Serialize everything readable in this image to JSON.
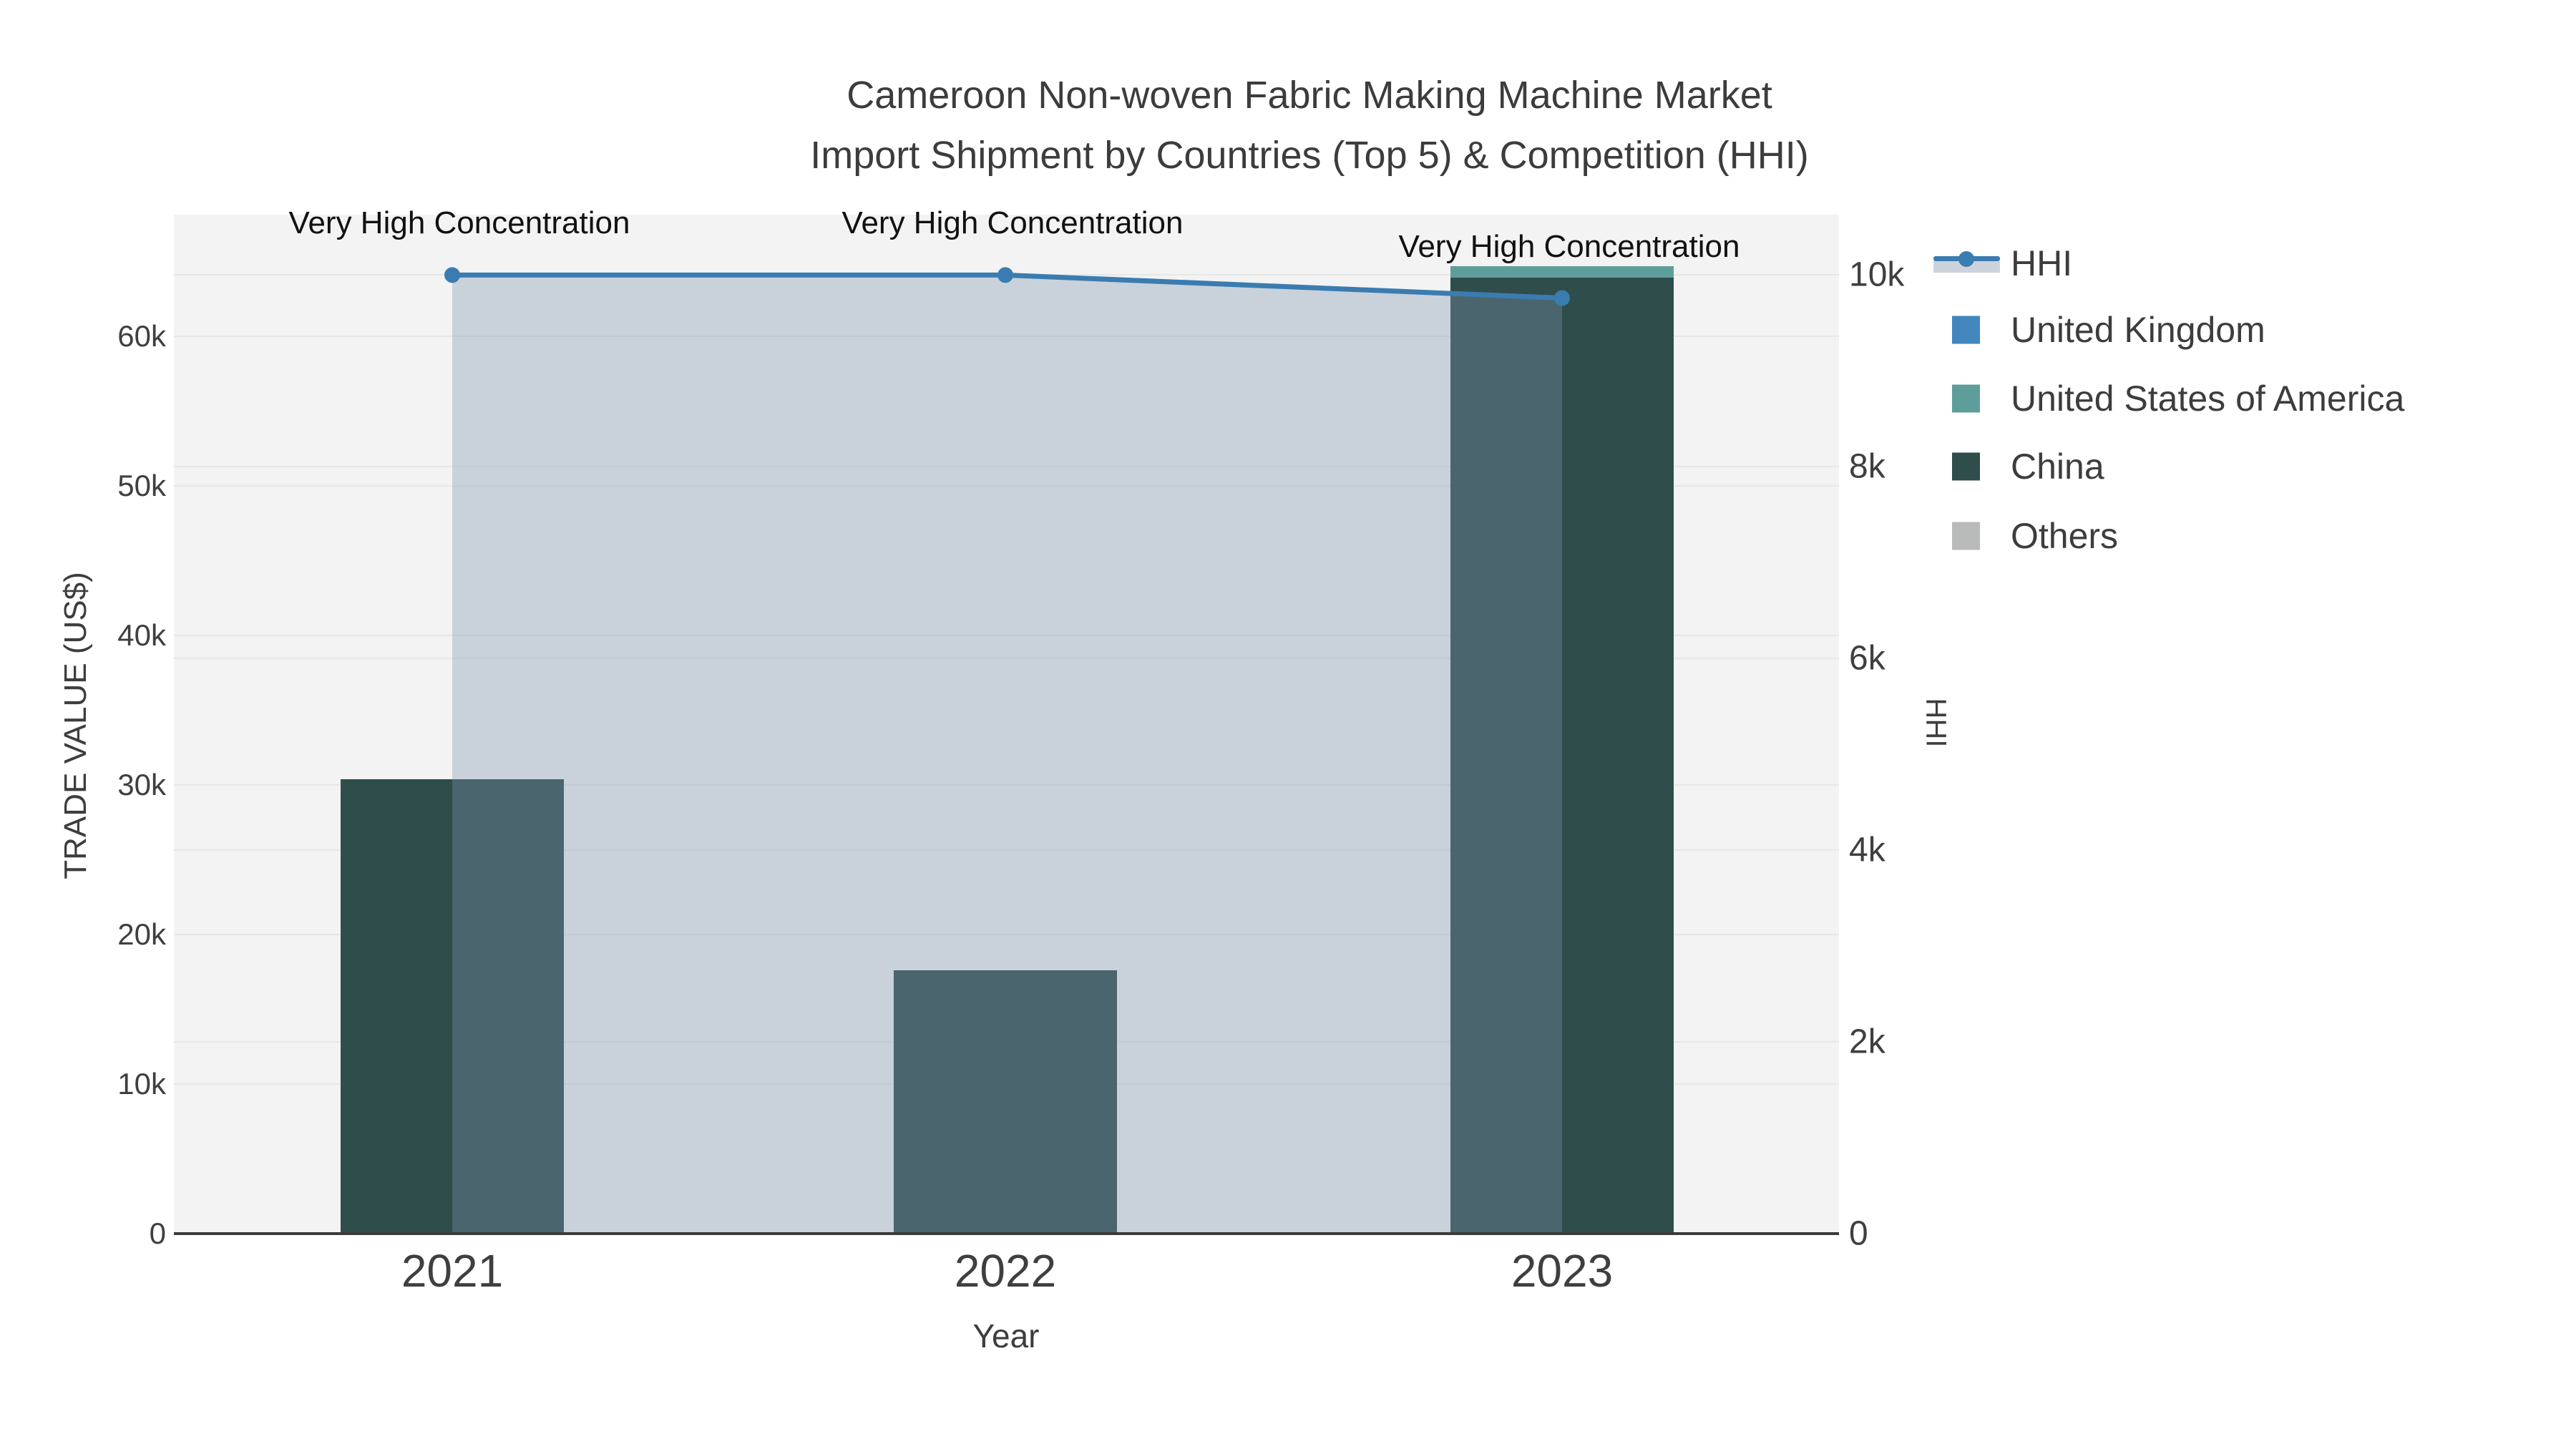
{
  "title": {
    "line1": "Cameroon Non-woven Fabric Making Machine Market",
    "line2": "Import Shipment by Countries (Top 5) & Competition (HHI)"
  },
  "x_axis": {
    "title": "Year",
    "ticks": [
      "2021",
      "2022",
      "2023"
    ]
  },
  "y_left": {
    "title": "TRADE VALUE (US$)",
    "ticks": [
      {
        "label": "0",
        "value": 0
      },
      {
        "label": "10k",
        "value": 10000
      },
      {
        "label": "20k",
        "value": 20000
      },
      {
        "label": "30k",
        "value": 30000
      },
      {
        "label": "40k",
        "value": 40000
      },
      {
        "label": "50k",
        "value": 50000
      },
      {
        "label": "60k",
        "value": 60000
      }
    ]
  },
  "y_right": {
    "title": "HHI",
    "ticks": [
      {
        "label": "0",
        "value": 0
      },
      {
        "label": "2k",
        "value": 2000
      },
      {
        "label": "4k",
        "value": 4000
      },
      {
        "label": "6k",
        "value": 6000
      },
      {
        "label": "8k",
        "value": 8000
      },
      {
        "label": "10k",
        "value": 10000
      }
    ]
  },
  "legend": {
    "items": [
      {
        "label": "HHI",
        "swatch": "line",
        "color": "#3b7cb0",
        "band_color": "#ccd3dc"
      },
      {
        "label": "United Kingdom",
        "swatch": "square",
        "color": "#4286bd"
      },
      {
        "label": "United States of America",
        "swatch": "square",
        "color": "#5d9e9a"
      },
      {
        "label": "China",
        "swatch": "square",
        "color": "#2e4d4b"
      },
      {
        "label": "Others",
        "swatch": "square",
        "color": "#b9bbba"
      }
    ]
  },
  "chart_data": {
    "type": "combo-bar-line",
    "categories": [
      "2021",
      "2022",
      "2023"
    ],
    "bar_value_unit": "US$",
    "series": [
      {
        "name": "United Kingdom",
        "type": "bar",
        "axis": "left",
        "color": "#4286bd",
        "values": [
          0,
          0,
          0
        ]
      },
      {
        "name": "United States of America",
        "type": "bar",
        "axis": "left",
        "color": "#5d9e9a",
        "values": [
          0,
          0,
          800
        ]
      },
      {
        "name": "China",
        "type": "bar",
        "axis": "left",
        "color": "#2e4d4b",
        "values": [
          30400,
          17600,
          63900
        ]
      },
      {
        "name": "Others",
        "type": "bar",
        "axis": "left",
        "color": "#b9bbba",
        "values": [
          0,
          0,
          0
        ]
      },
      {
        "name": "HHI",
        "type": "line",
        "axis": "right",
        "color": "#3b7cb0",
        "fill": "rgba(125,145,176,0.35)",
        "values": [
          10000,
          10000,
          9760
        ]
      }
    ],
    "stack_order_bottom_up": [
      "Others",
      "China",
      "United States of America",
      "United Kingdom"
    ],
    "bars_stacked": true,
    "grid": true,
    "legend_position": "right",
    "y_left_range": [
      0,
      68130
    ],
    "y_right_range": [
      0,
      10630
    ],
    "annotations": [
      {
        "text": "Very High Concentration",
        "category": "2021",
        "series": "HHI"
      },
      {
        "text": "Very High Concentration",
        "category": "2022",
        "series": "HHI"
      },
      {
        "text": "Very High Concentration",
        "category": "2023",
        "series": "HHI"
      }
    ]
  }
}
